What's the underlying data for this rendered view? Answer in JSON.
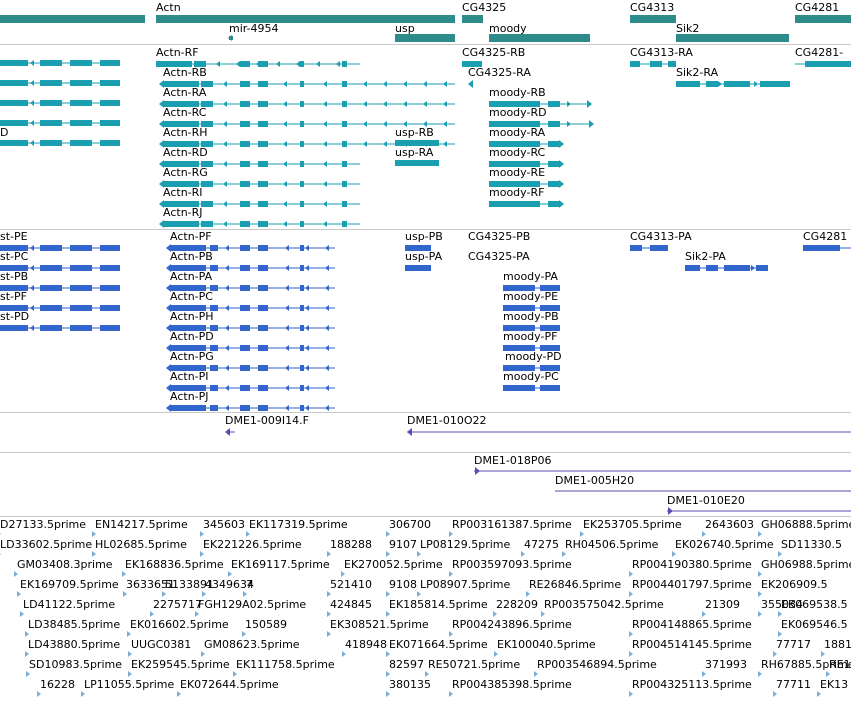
{
  "colors": {
    "gene": "#2e8b8b",
    "transcript": "#1a9fb0",
    "protein": "#3366cc",
    "clone": "#5e4bb0",
    "est": "#7aaed6",
    "separator": "#c8c8c8"
  },
  "genes": [
    "Actn",
    "mir-4954",
    "usp",
    "CG4325",
    "moody",
    "CG4313",
    "Sik2",
    "CG4281"
  ],
  "transcripts": [
    "Actn-RF",
    "Actn-RB",
    "Actn-RA",
    "Actn-RC",
    "Actn-RH",
    "Actn-RD",
    "Actn-RG",
    "Actn-RI",
    "Actn-RJ",
    "usp-RB",
    "usp-RA",
    "CG4325-RB",
    "CG4325-RA",
    "moody-RB",
    "moody-RD",
    "moody-RA",
    "moody-RC",
    "moody-RE",
    "moody-RF",
    "CG4313-RA",
    "Sik2-RA",
    "CG4281-",
    "D"
  ],
  "proteins": [
    "Actn-PF",
    "Actn-PB",
    "Actn-PA",
    "Actn-PC",
    "Actn-PH",
    "Actn-PD",
    "Actn-PG",
    "Actn-PI",
    "Actn-PJ",
    "usp-PB",
    "usp-PA",
    "CG4325-PB",
    "CG4325-PA",
    "moody-PA",
    "moody-PE",
    "moody-PB",
    "moody-PF",
    "moody-PD",
    "moody-PC",
    "CG4313-PA",
    "Sik2-PA",
    "CG4281",
    "st-PE",
    "st-PC",
    "st-PB",
    "st-PF",
    "st-PD"
  ],
  "clones": [
    "DME1-009I14.F",
    "DME1-010O22",
    "DME1-018P06",
    "DME1-005H20",
    "DME1-010E20"
  ],
  "ests": [
    "D27133.5prime",
    "EN14217.5prime",
    "345603",
    "EK117319.5prime",
    "306700",
    "RP003161387.5prime",
    "EK253705.5prime",
    "2643603",
    "GH06888.5prime",
    "LD33602.5prime",
    "HL02685.5prime",
    "EK221226.5prime",
    "188288",
    "9107",
    "LP08129.5prime",
    "47275",
    "RH04506.5prime",
    "EK026740.5prime",
    "SD11330.5",
    "GM03408.3prime",
    "EK168836.5prime",
    "EK169117.5prime",
    "EK270052.5prime",
    "RP003597093.5prime",
    "RP004190380.5prime",
    "GH06988.5prime",
    "EK169709.5prime",
    "3633651",
    "5133891",
    "4349634",
    "7",
    "521410",
    "9108",
    "LP08907.5prime",
    "RE26846.5prime",
    "RP004401797.5prime",
    "EK206909.5",
    "LD41122.5prime",
    "2275717",
    "FGH129A02.5prime",
    "424845",
    "EK185814.5prime",
    "228209",
    "RP003575042.5prime",
    "21309",
    "355034",
    "EK069538.5",
    "LD38485.5prime",
    "EK016602.5prime",
    "150589",
    "EK308521.5prime",
    "RP004243896.5prime",
    "RP004148865.5prime",
    "EK069546.5",
    "LD43880.5prime",
    "UUGC0381",
    "GM08623.5prime",
    "418948",
    "EK071664.5prime",
    "EK100040.5prime",
    "RP004514145.5prime",
    "77717",
    "1881",
    "SD10983.5prime",
    "EK259545.5prime",
    "EK111758.5prime",
    "82597",
    "RE50721.5prime",
    "RP003546894.5prime",
    "371993",
    "RH67885.5prime",
    "RE1",
    "16228",
    "LP11055.5prime",
    "EK072644.5prime",
    "380135",
    "RP004385398.5prime",
    "RP004325113.5prime",
    "77711",
    "EK13"
  ]
}
